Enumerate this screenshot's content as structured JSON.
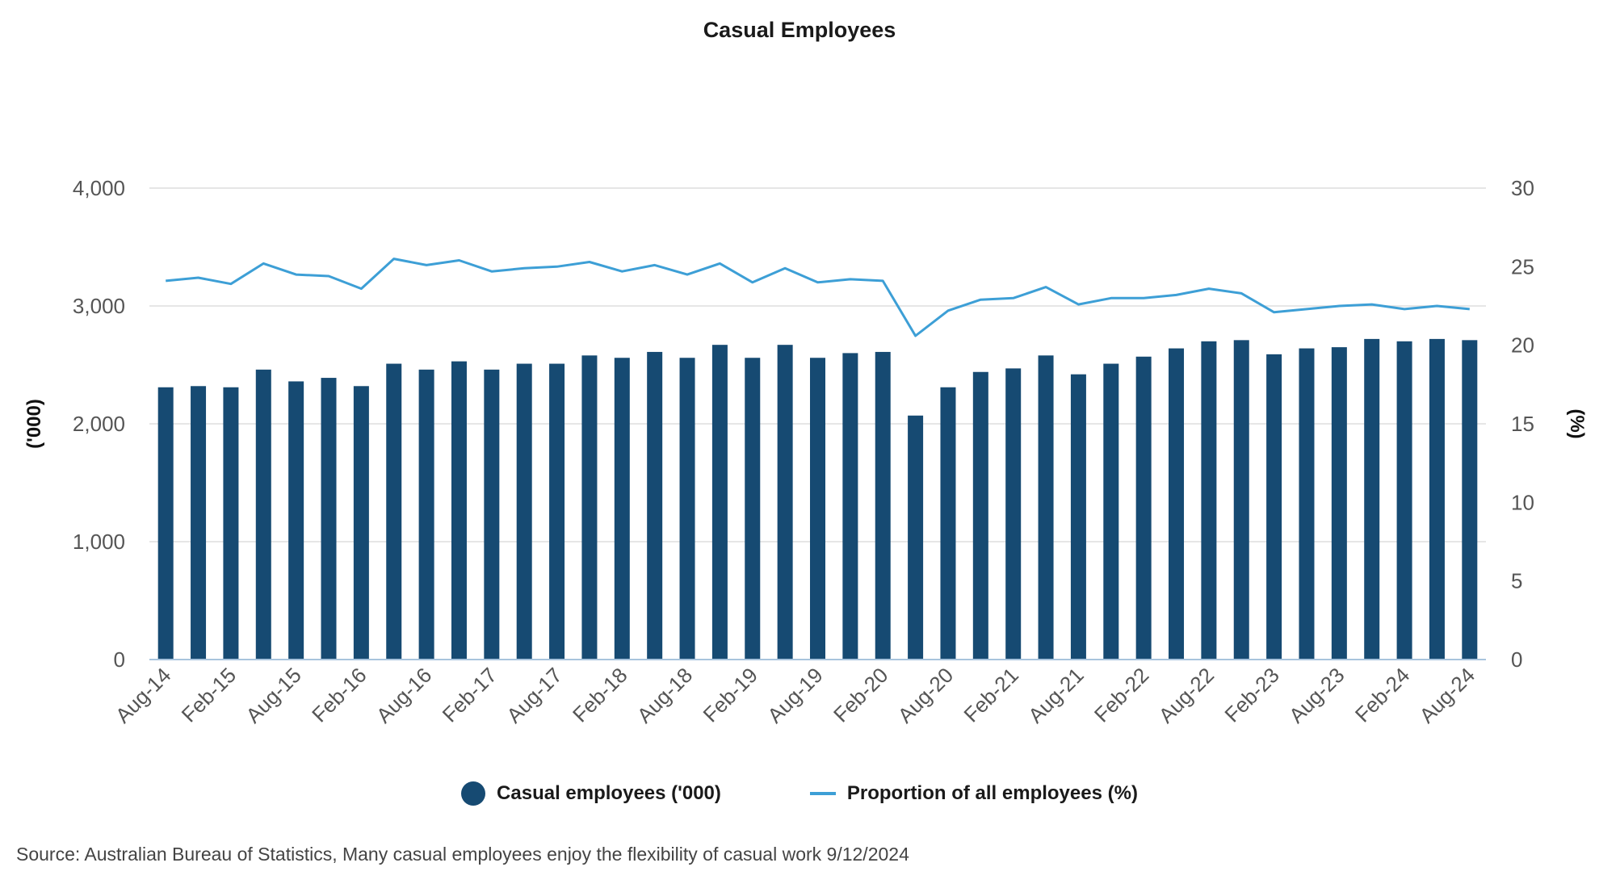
{
  "title": "Casual Employees",
  "source": "Source: Australian Bureau of Statistics, Many casual employees enjoy the flexibility of casual work 9/12/2024",
  "colors": {
    "bar": "#164a72",
    "line": "#3d9fd6",
    "grid": "#dddddd",
    "baseline": "#a8c4dd"
  },
  "chart_data": {
    "type": "bar",
    "title": "Casual Employees",
    "categories": [
      "Aug-14",
      "Nov-14",
      "Feb-15",
      "May-15",
      "Aug-15",
      "Nov-15",
      "Feb-16",
      "May-16",
      "Aug-16",
      "Nov-16",
      "Feb-17",
      "May-17",
      "Aug-17",
      "Nov-17",
      "Feb-18",
      "May-18",
      "Aug-18",
      "Nov-18",
      "Feb-19",
      "May-19",
      "Aug-19",
      "Nov-19",
      "Feb-20",
      "May-20",
      "Aug-20",
      "Nov-20",
      "Feb-21",
      "May-21",
      "Aug-21",
      "Nov-21",
      "Feb-22",
      "May-22",
      "Aug-22",
      "Nov-22",
      "Feb-23",
      "May-23",
      "Aug-23",
      "Nov-23",
      "Feb-24",
      "May-24",
      "Aug-24"
    ],
    "tick_labels": [
      "Aug-14",
      "Feb-15",
      "Aug-15",
      "Feb-16",
      "Aug-16",
      "Feb-17",
      "Aug-17",
      "Feb-18",
      "Aug-18",
      "Feb-19",
      "Aug-19",
      "Feb-20",
      "Aug-20",
      "Feb-21",
      "Aug-21",
      "Feb-22",
      "Aug-22",
      "Feb-23",
      "Aug-23",
      "Feb-24",
      "Aug-24"
    ],
    "series": [
      {
        "name": "Casual employees ('000)",
        "type": "bar",
        "axis": "left",
        "values": [
          2310,
          2320,
          2310,
          2460,
          2360,
          2390,
          2320,
          2510,
          2460,
          2530,
          2460,
          2510,
          2510,
          2580,
          2560,
          2610,
          2560,
          2670,
          2560,
          2670,
          2560,
          2600,
          2610,
          2070,
          2310,
          2440,
          2470,
          2580,
          2420,
          2510,
          2570,
          2640,
          2700,
          2710,
          2590,
          2640,
          2650,
          2720,
          2700,
          2720,
          2710
        ]
      },
      {
        "name": "Proportion of all employees (%)",
        "type": "line",
        "axis": "right",
        "values": [
          24.1,
          24.3,
          23.9,
          25.2,
          24.5,
          24.4,
          23.6,
          25.5,
          25.1,
          25.4,
          24.7,
          24.9,
          25.0,
          25.3,
          24.7,
          25.1,
          24.5,
          25.2,
          24.0,
          24.9,
          24.0,
          24.2,
          24.1,
          20.6,
          22.2,
          22.9,
          23.0,
          23.7,
          22.6,
          23.0,
          23.0,
          23.2,
          23.6,
          23.3,
          22.1,
          22.3,
          22.5,
          22.6,
          22.3,
          22.5,
          22.3
        ]
      }
    ],
    "ylabel": "('000)",
    "y2label": "(%)",
    "ylim": [
      0,
      4000
    ],
    "y2lim": [
      0,
      30
    ],
    "yticks": [
      "0",
      "1,000",
      "2,000",
      "3,000",
      "4,000"
    ],
    "y2ticks": [
      "0",
      "5",
      "10",
      "15",
      "20",
      "25",
      "30"
    ],
    "grid": true,
    "legend_position": "bottom"
  }
}
